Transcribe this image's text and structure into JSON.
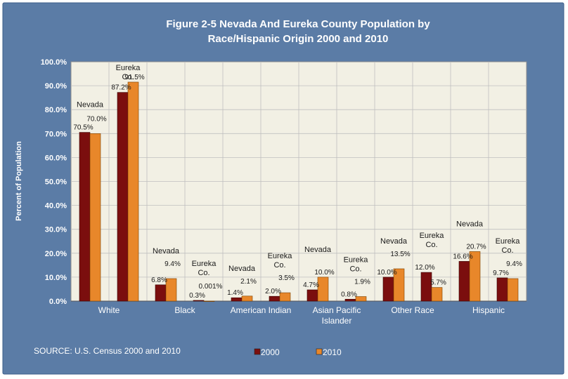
{
  "title_line1": "Figure 2-5 Nevada And Eureka County Population by",
  "title_line2": "Race/Hispanic Origin 2000 and 2010",
  "source": "SOURCE: U.S. Census 2000 and 2010",
  "colors": {
    "frame_bg": "#5B7CA6",
    "frame_border": "#3E5F8A",
    "plot_bg": "#F2F0E4",
    "series_2000": "#7B0E0E",
    "series_2010": "#E8872A",
    "grid": "#BFBFBF",
    "text_light": "#FFFFFF",
    "text_dark": "#1A1A1A"
  },
  "chart_data": {
    "type": "bar",
    "ylabel": "Percent of Population",
    "xlabel": "",
    "ylim": [
      0,
      100
    ],
    "y_ticks": [
      "0.0%",
      "10.0%",
      "20.0%",
      "30.0%",
      "40.0%",
      "50.0%",
      "60.0%",
      "70.0%",
      "80.0%",
      "90.0%",
      "100.0%"
    ],
    "legend": [
      {
        "name": "2000",
        "color": "#7B0E0E"
      },
      {
        "name": "2010",
        "color": "#E8872A"
      }
    ],
    "categories": [
      {
        "label": "White",
        "geo": "Nevada",
        "v2000": 70.5,
        "v2010": 70.0,
        "l2000": "70.5%",
        "l2010": "70.0%"
      },
      {
        "label": "",
        "geo": "Eureka Co.",
        "v2000": 87.2,
        "v2010": 91.5,
        "l2000": "87.2%",
        "l2010": "91.5%"
      },
      {
        "label": "Black",
        "geo": "Nevada",
        "v2000": 6.8,
        "v2010": 9.4,
        "l2000": "6.8%",
        "l2010": "9.4%"
      },
      {
        "label": "",
        "geo": "Eureka Co.",
        "v2000": 0.3,
        "v2010": 0.001,
        "l2000": "0.3%",
        "l2010": "0.001%"
      },
      {
        "label": "American Indian",
        "geo": "Nevada",
        "v2000": 1.4,
        "v2010": 2.1,
        "l2000": "1.4%",
        "l2010": "2.1%"
      },
      {
        "label": "",
        "geo": "Eureka Co.",
        "v2000": 2.0,
        "v2010": 3.5,
        "l2000": "2.0%",
        "l2010": "3.5%"
      },
      {
        "label": "Asian Pacific Islander",
        "geo": "Nevada",
        "v2000": 4.7,
        "v2010": 10.0,
        "l2000": "4.7%",
        "l2010": "10.0%"
      },
      {
        "label": "",
        "geo": "Eureka Co.",
        "v2000": 0.8,
        "v2010": 1.9,
        "l2000": "0.8%",
        "l2010": "1.9%"
      },
      {
        "label": "Other Race",
        "geo": "Nevada",
        "v2000": 10.0,
        "v2010": 13.5,
        "l2000": "10.0%",
        "l2010": "13.5%"
      },
      {
        "label": "",
        "geo": "Eureka Co.",
        "v2000": 12.0,
        "v2010": 5.7,
        "l2000": "12.0%",
        "l2010": "5.7%"
      },
      {
        "label": "Hispanic",
        "geo": "Nevada",
        "v2000": 16.6,
        "v2010": 20.7,
        "l2000": "16.6%",
        "l2010": "20.7%"
      },
      {
        "label": "",
        "geo": "Eureka Co.",
        "v2000": 9.7,
        "v2010": 9.4,
        "l2000": "9.7%",
        "l2010": "9.4%"
      }
    ]
  }
}
